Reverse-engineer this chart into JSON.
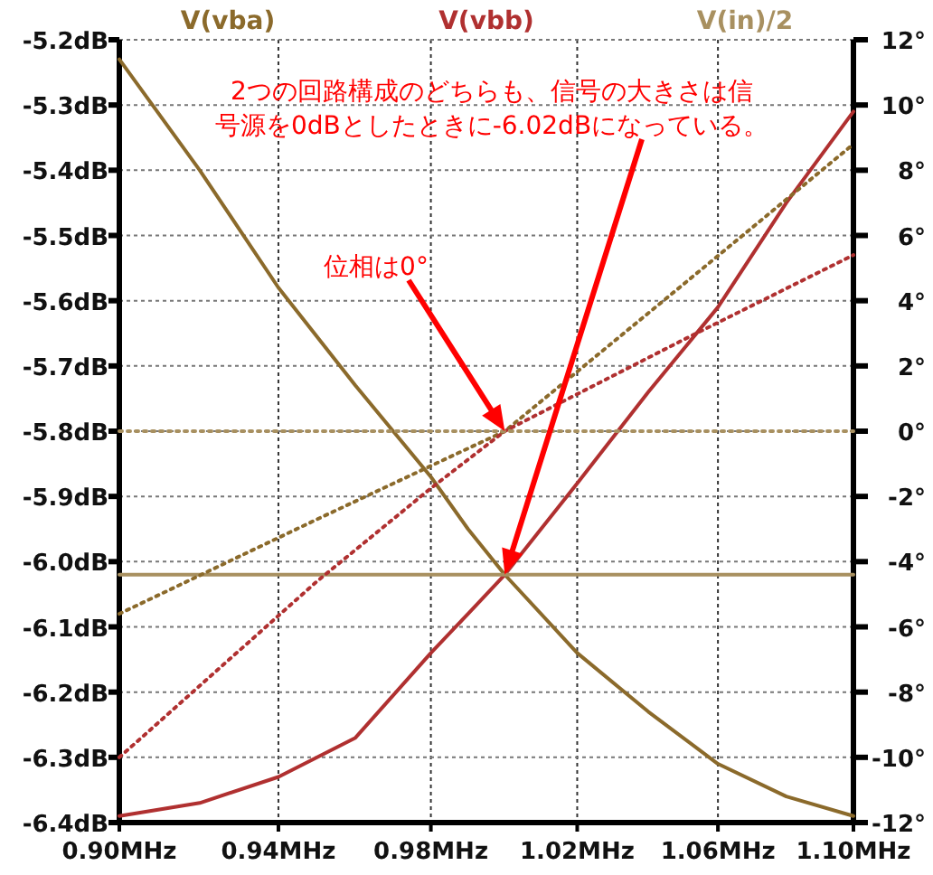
{
  "chart_data": {
    "type": "line",
    "log": "x",
    "grid": true,
    "legend": "top",
    "x": [
      0.9,
      0.92,
      0.94,
      0.96,
      0.98,
      0.99,
      1.0,
      1.02,
      1.04,
      1.06,
      1.08,
      1.1
    ],
    "xlim": [
      0.9,
      1.1
    ],
    "xticks": [
      {
        "value": 0.9,
        "label": "0.90MHz"
      },
      {
        "value": 0.94,
        "label": "0.94MHz"
      },
      {
        "value": 0.98,
        "label": "0.98MHz"
      },
      {
        "value": 1.02,
        "label": "1.02MHz"
      },
      {
        "value": 1.06,
        "label": "1.06MHz"
      },
      {
        "value": 1.1,
        "label": "1.10MHz"
      }
    ],
    "ylim": [
      -6.4,
      -5.2
    ],
    "yticks": [
      {
        "value": -6.4,
        "label": "-6.4dB"
      },
      {
        "value": -6.3,
        "label": "-6.3dB"
      },
      {
        "value": -6.2,
        "label": "-6.2dB"
      },
      {
        "value": -6.1,
        "label": "-6.1dB"
      },
      {
        "value": -6.0,
        "label": "-6.0dB"
      },
      {
        "value": -5.9,
        "label": "-5.9dB"
      },
      {
        "value": -5.8,
        "label": "-5.8dB"
      },
      {
        "value": -5.7,
        "label": "-5.7dB"
      },
      {
        "value": -5.6,
        "label": "-5.6dB"
      },
      {
        "value": -5.5,
        "label": "-5.5dB"
      },
      {
        "value": -5.4,
        "label": "-5.4dB"
      },
      {
        "value": -5.3,
        "label": "-5.3dB"
      },
      {
        "value": -5.2,
        "label": "-5.2dB"
      }
    ],
    "y2lim": [
      -12,
      12
    ],
    "y2ticks": [
      {
        "value": -12,
        "label": "-12°"
      },
      {
        "value": -10,
        "label": "-10°"
      },
      {
        "value": -8,
        "label": "-8°"
      },
      {
        "value": -6,
        "label": "-6°"
      },
      {
        "value": -4,
        "label": "-4°"
      },
      {
        "value": -2,
        "label": "-2°"
      },
      {
        "value": 0,
        "label": "0°"
      },
      {
        "value": 2,
        "label": "2°"
      },
      {
        "value": 4,
        "label": "4°"
      },
      {
        "value": 6,
        "label": "6°"
      },
      {
        "value": 8,
        "label": "8°"
      },
      {
        "value": 10,
        "label": "10°"
      },
      {
        "value": 12,
        "label": "12°"
      }
    ],
    "series": [
      {
        "name": "V(vba)",
        "color": "#8b6a2b",
        "values": [
          -5.23,
          -5.4,
          -5.58,
          -5.73,
          -5.87,
          -5.95,
          -6.02,
          -6.14,
          -6.23,
          -6.31,
          -6.36,
          -6.39
        ]
      },
      {
        "name": "V(vbb)",
        "color": "#b03030",
        "values": [
          -6.39,
          -6.37,
          -6.33,
          -6.27,
          -6.14,
          -6.08,
          -6.02,
          -5.88,
          -5.74,
          -5.61,
          -5.45,
          -5.31
        ]
      },
      {
        "name": "V(in)/2",
        "color": "#a89060",
        "x": [
          0.9,
          1.1
        ],
        "values": [
          -6.02,
          -6.02
        ]
      },
      {
        "color": "#8b6a2b",
        "axis": "y2",
        "line_style": "dotted",
        "x": [
          0.9,
          0.95,
          1.0,
          1.05,
          1.1
        ],
        "values": [
          -5.6,
          -2.7,
          0,
          4.5,
          8.8
        ]
      },
      {
        "color": "#b03030",
        "axis": "y2",
        "line_style": "dotted",
        "x": [
          0.9,
          0.95,
          0.98,
          1.0,
          1.05,
          1.1
        ],
        "values": [
          -10.0,
          -4.6,
          -1.75,
          0,
          2.8,
          5.4
        ]
      },
      {
        "color": "#a89060",
        "axis": "y2",
        "line_style": "dotted",
        "x": [
          0.9,
          1.1
        ],
        "values": [
          0,
          0
        ]
      }
    ],
    "annotations": [
      "2つの回路構成のどちらも、信号の大きさは信号源を0dBとしたときに-6.02dBになっている。",
      "位相は0°"
    ]
  }
}
